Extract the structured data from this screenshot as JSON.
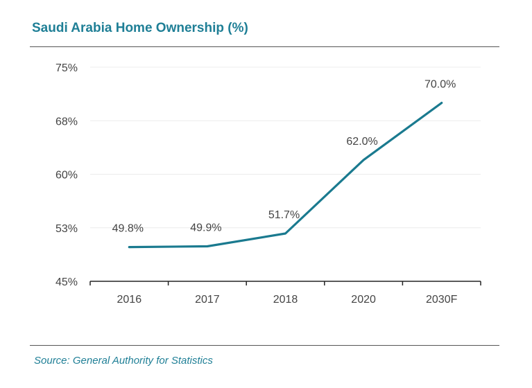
{
  "title": "Saudi Arabia Home Ownership (%)",
  "source": "Source: General Authority for Statistics",
  "colors": {
    "accent": "#1f7f96",
    "line": "#1a7a8f",
    "text": "#444444",
    "grid": "#ececec"
  },
  "chart_data": {
    "type": "line",
    "title": "Saudi Arabia Home Ownership (%)",
    "xlabel": "",
    "ylabel": "",
    "categories": [
      "2016",
      "2017",
      "2018",
      "2020",
      "2030F"
    ],
    "series": [
      {
        "name": "Home Ownership",
        "values": [
          49.8,
          49.9,
          51.7,
          62.0,
          70.0
        ]
      }
    ],
    "data_labels": [
      "49.8%",
      "49.9%",
      "51.7%",
      "62.0%",
      "70.0%"
    ],
    "ylim": [
      45,
      75
    ],
    "yticks": [
      45,
      52.5,
      60,
      67.5,
      75
    ],
    "ytick_labels": [
      "45%",
      "53%",
      "60%",
      "68%",
      "75%"
    ],
    "grid": true,
    "legend": "none"
  }
}
